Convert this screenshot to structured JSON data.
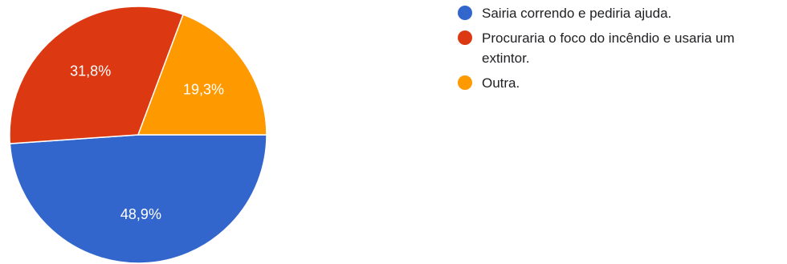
{
  "chart_data": {
    "type": "pie",
    "categories": [
      "Sairia correndo e pediria ajuda.",
      "Procuraria o foco do incêndio e usaria um extintor.",
      "Outra."
    ],
    "values": [
      48.9,
      31.8,
      19.3
    ],
    "value_labels": [
      "48,9%",
      "31,8%",
      "19,3%"
    ],
    "colors": [
      "#3366cc",
      "#dc3912",
      "#ff9900"
    ],
    "legend_position": "right"
  },
  "legend": {
    "items": [
      {
        "label": "Sairia correndo e pediria ajuda.",
        "color": "#3366cc"
      },
      {
        "label": "Procuraria o foco do incêndio e usaria um extintor.",
        "color": "#dc3912"
      },
      {
        "label": "Outra.",
        "color": "#ff9900"
      }
    ]
  }
}
